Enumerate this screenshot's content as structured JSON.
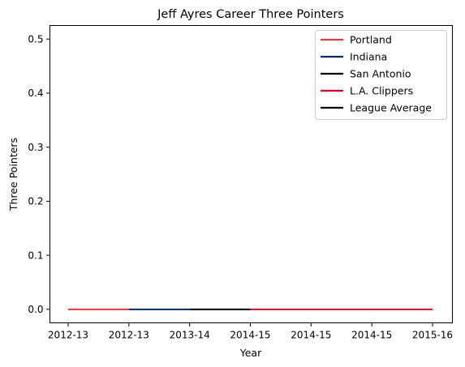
{
  "chart_data": {
    "type": "line",
    "title": "Jeff Ayres Career Three Pointers",
    "xlabel": "Year",
    "ylabel": "Three Pointers",
    "x": [
      "2012-13",
      "2012-13",
      "2013-14",
      "2014-15",
      "2014-15",
      "2014-15",
      "2015-16"
    ],
    "yticks": [
      "0.0",
      "0.1",
      "0.2",
      "0.3",
      "0.4",
      "0.5"
    ],
    "ylim": [
      -0.025,
      0.525
    ],
    "grid": false,
    "legend_position": "top-right",
    "series": [
      {
        "name": "Portland",
        "color": "#E03A3E",
        "values": [
          0,
          0,
          null,
          null,
          null,
          null,
          null
        ]
      },
      {
        "name": "Indiana",
        "color": "#002D62",
        "values": [
          null,
          0,
          0,
          null,
          null,
          null,
          null
        ]
      },
      {
        "name": "San Antonio",
        "color": "#000000",
        "values": [
          null,
          null,
          0,
          0,
          null,
          null,
          null
        ]
      },
      {
        "name": "L.A. Clippers",
        "color": "#C8102E",
        "values": [
          null,
          null,
          null,
          0,
          0,
          0,
          0
        ]
      },
      {
        "name": "League Average",
        "color": "#000000",
        "values": [
          null,
          null,
          null,
          null,
          null,
          null,
          null
        ]
      }
    ]
  }
}
